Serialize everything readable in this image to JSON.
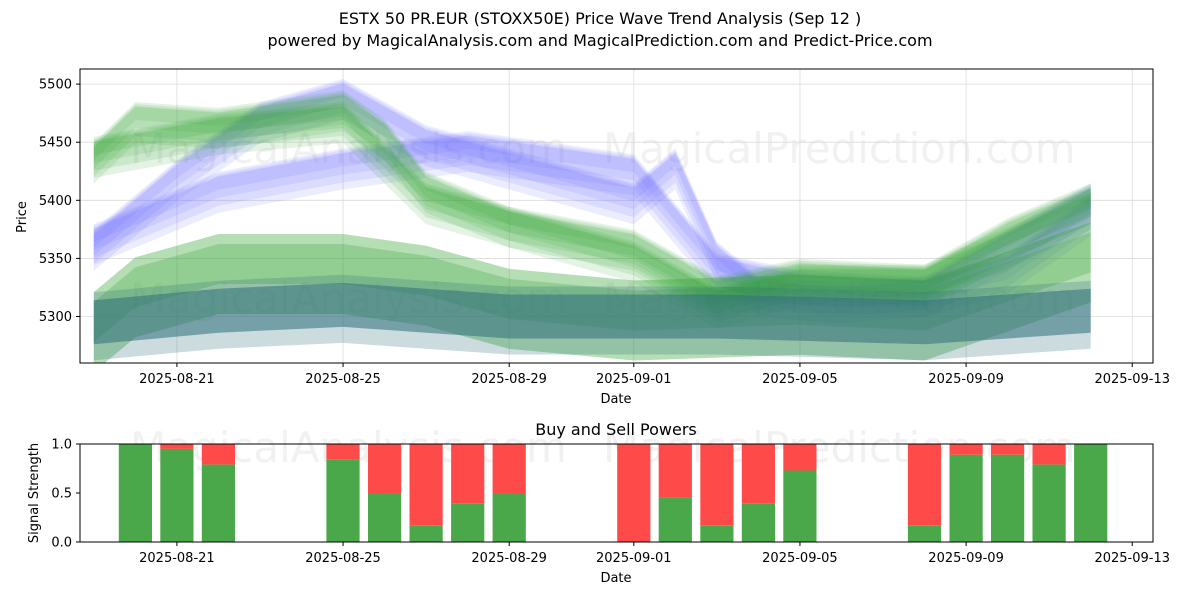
{
  "chart_data": [
    {
      "type": "area",
      "title": "ESTX 50 PR.EUR (STOXX50E) Price Wave Trend Analysis (Sep 12 )",
      "subtitle": "powered by MagicalAnalysis.com and MagicalPrediction.com and Predict-Price.com",
      "xlabel": "Date",
      "ylabel": "Price",
      "x_ticks": [
        "2025-08-21",
        "2025-08-25",
        "2025-08-29",
        "2025-09-01",
        "2025-09-05",
        "2025-09-09",
        "2025-09-13"
      ],
      "y_ticks": [
        5300,
        5350,
        5400,
        5450,
        5500
      ],
      "xlim": [
        "2025-08-18T16:00",
        "2025-09-13T12:00"
      ],
      "ylim": [
        5260,
        5513
      ],
      "grid": true,
      "watermarks": [
        "MagicalAnalysis.com",
        "MagicalPrediction.com"
      ],
      "colors": {
        "blue_band": "#6b6bff",
        "green_band": "#2ca02c",
        "dark_band": "#2f6f7a"
      },
      "series": [
        {
          "color": "blue",
          "x": [
            "2025-08-19",
            "2025-08-21",
            "2025-08-23",
            "2025-08-25",
            "2025-08-27",
            "2025-08-29",
            "2025-09-01",
            "2025-09-02",
            "2025-09-03",
            "2025-09-04",
            "2025-09-06",
            "2025-09-08",
            "2025-09-10",
            "2025-09-12"
          ],
          "values": [
            5360,
            5420,
            5470,
            5490,
            5450,
            5430,
            5400,
            5430,
            5350,
            5320,
            5315,
            5320,
            5340,
            5390
          ]
        },
        {
          "color": "blue",
          "x": [
            "2025-08-19",
            "2025-08-22",
            "2025-08-25",
            "2025-08-28",
            "2025-09-01",
            "2025-09-03",
            "2025-09-05",
            "2025-09-08",
            "2025-09-12"
          ],
          "values": [
            5365,
            5410,
            5430,
            5445,
            5425,
            5340,
            5325,
            5320,
            5400
          ]
        },
        {
          "color": "green",
          "x": [
            "2025-08-19",
            "2025-08-20",
            "2025-08-22",
            "2025-08-25",
            "2025-08-26",
            "2025-08-27",
            "2025-08-29",
            "2025-09-01",
            "2025-09-03",
            "2025-09-05",
            "2025-09-08",
            "2025-09-10",
            "2025-09-12"
          ],
          "values": [
            5435,
            5470,
            5465,
            5480,
            5455,
            5410,
            5380,
            5360,
            5320,
            5335,
            5330,
            5370,
            5400
          ]
        },
        {
          "color": "green",
          "x": [
            "2025-08-19",
            "2025-08-22",
            "2025-08-25",
            "2025-08-27",
            "2025-08-29",
            "2025-09-01",
            "2025-09-03",
            "2025-09-05",
            "2025-09-08",
            "2025-09-12"
          ],
          "values": [
            5440,
            5460,
            5470,
            5400,
            5380,
            5350,
            5310,
            5330,
            5330,
            5395
          ]
        },
        {
          "color": "green",
          "x": [
            "2025-08-19",
            "2025-08-20",
            "2025-08-22",
            "2025-08-25",
            "2025-08-27",
            "2025-08-29",
            "2025-09-01",
            "2025-09-05",
            "2025-09-08",
            "2025-09-12"
          ],
          "values": [
            5290,
            5320,
            5340,
            5340,
            5330,
            5310,
            5300,
            5305,
            5300,
            5350
          ]
        },
        {
          "color": "dark",
          "x": [
            "2025-08-19",
            "2025-08-22",
            "2025-08-25",
            "2025-08-27",
            "2025-08-29",
            "2025-09-01",
            "2025-09-03",
            "2025-09-05",
            "2025-09-08",
            "2025-09-10",
            "2025-09-12"
          ],
          "values": [
            5295,
            5305,
            5310,
            5305,
            5300,
            5300,
            5300,
            5298,
            5295,
            5300,
            5305
          ]
        }
      ]
    },
    {
      "type": "bar",
      "title": "Buy and Sell Powers",
      "xlabel": "Date",
      "ylabel": "Signal Strength",
      "x_ticks": [
        "2025-08-21",
        "2025-08-25",
        "2025-08-29",
        "2025-09-01",
        "2025-09-05",
        "2025-09-09",
        "2025-09-13"
      ],
      "y_ticks": [
        "0.0",
        "0.5",
        "1.0"
      ],
      "ylim": [
        0,
        1
      ],
      "xlim": [
        "2025-08-18T16:00",
        "2025-09-13T12:00"
      ],
      "colors": {
        "buy": "#4aa84a",
        "sell": "#ff4a4a"
      },
      "watermarks": [
        "MagicalAnalysis.com",
        "MagicalPrediction.com"
      ],
      "categories": [
        "2025-08-20",
        "2025-08-21",
        "2025-08-22",
        "2025-08-25",
        "2025-08-26",
        "2025-08-27",
        "2025-08-28",
        "2025-08-29",
        "2025-09-01",
        "2025-09-02",
        "2025-09-03",
        "2025-09-04",
        "2025-09-05",
        "2025-09-08",
        "2025-09-09",
        "2025-09-10",
        "2025-09-11",
        "2025-09-12"
      ],
      "buy": [
        1.0,
        0.95,
        0.79,
        0.84,
        0.5,
        0.17,
        0.39,
        0.5,
        0.0,
        0.45,
        0.17,
        0.39,
        0.73,
        0.17,
        0.89,
        0.89,
        0.79,
        1.0
      ]
    }
  ]
}
